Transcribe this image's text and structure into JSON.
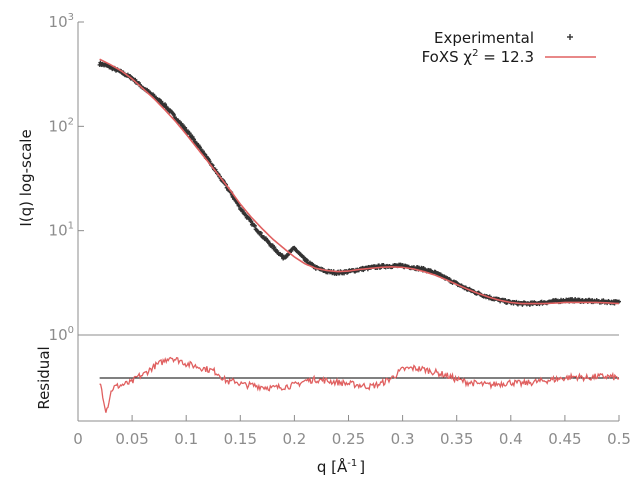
{
  "chart_data": {
    "type": "line",
    "top_panel": {
      "ylabel": "I(q) log-scale",
      "yscale": "log",
      "ylim": [
        1,
        1000
      ],
      "yticks": [
        {
          "base": "10",
          "exp": "0"
        },
        {
          "base": "10",
          "exp": "1"
        },
        {
          "base": "10",
          "exp": "2"
        },
        {
          "base": "10",
          "exp": "3"
        }
      ],
      "legend": {
        "placement": "top-right",
        "entries": [
          {
            "label": "Experimental",
            "marker": "points",
            "color": "#333333"
          },
          {
            "label": "FoXS χ",
            "sup": "2",
            "label_suffix": " = 12.3",
            "marker": "line",
            "color": "#e06060"
          }
        ]
      },
      "series": [
        {
          "name": "Experimental",
          "color": "#333333",
          "x": [
            0.02,
            0.03,
            0.04,
            0.05,
            0.06,
            0.07,
            0.08,
            0.09,
            0.1,
            0.11,
            0.12,
            0.13,
            0.14,
            0.15,
            0.16,
            0.17,
            0.18,
            0.19,
            0.2,
            0.21,
            0.22,
            0.23,
            0.24,
            0.25,
            0.26,
            0.27,
            0.28,
            0.29,
            0.3,
            0.31,
            0.32,
            0.33,
            0.34,
            0.35,
            0.36,
            0.37,
            0.38,
            0.39,
            0.4,
            0.41,
            0.42,
            0.43,
            0.44,
            0.45,
            0.46,
            0.47,
            0.48,
            0.49,
            0.5
          ],
          "y": [
            400,
            370,
            330,
            290,
            235,
            195,
            160,
            122,
            92,
            68,
            48,
            34,
            24,
            16.5,
            12,
            9,
            7,
            5.5,
            6.8,
            5.2,
            4.4,
            4.05,
            3.95,
            4.05,
            4.25,
            4.4,
            4.55,
            4.6,
            4.6,
            4.45,
            4.25,
            3.95,
            3.5,
            3.1,
            2.75,
            2.5,
            2.3,
            2.15,
            2.05,
            2.0,
            2.0,
            2.05,
            2.1,
            2.15,
            2.15,
            2.12,
            2.1,
            2.08,
            2.05
          ]
        },
        {
          "name": "FoXS",
          "color": "#e06060",
          "x": [
            0.02,
            0.03,
            0.04,
            0.05,
            0.06,
            0.07,
            0.08,
            0.09,
            0.1,
            0.11,
            0.12,
            0.13,
            0.14,
            0.15,
            0.16,
            0.17,
            0.18,
            0.19,
            0.2,
            0.21,
            0.22,
            0.23,
            0.24,
            0.25,
            0.26,
            0.27,
            0.28,
            0.29,
            0.3,
            0.31,
            0.32,
            0.33,
            0.34,
            0.35,
            0.36,
            0.37,
            0.38,
            0.39,
            0.4,
            0.41,
            0.42,
            0.43,
            0.44,
            0.45,
            0.46,
            0.47,
            0.48,
            0.49,
            0.5
          ],
          "y": [
            440,
            390,
            340,
            285,
            230,
            185,
            145,
            112,
            84,
            62,
            46,
            34,
            25,
            18,
            13.5,
            10.5,
            8.3,
            6.8,
            5.6,
            4.8,
            4.35,
            4.15,
            4.05,
            4.1,
            4.25,
            4.35,
            4.45,
            4.5,
            4.45,
            4.3,
            4.05,
            3.75,
            3.4,
            3.05,
            2.75,
            2.5,
            2.3,
            2.15,
            2.05,
            2.0,
            2.0,
            2.0,
            2.02,
            2.05,
            2.05,
            2.05,
            2.05,
            2.03,
            2.0
          ]
        }
      ]
    },
    "bottom_panel": {
      "ylabel": "Residual",
      "ylim": [
        -3,
        3
      ],
      "reference_value": 0,
      "series": [
        {
          "name": "Residual",
          "color": "#e06060",
          "x": [
            0.02,
            0.022,
            0.024,
            0.026,
            0.028,
            0.03,
            0.032,
            0.035,
            0.04,
            0.045,
            0.05,
            0.055,
            0.06,
            0.065,
            0.07,
            0.075,
            0.08,
            0.085,
            0.09,
            0.095,
            0.1,
            0.105,
            0.11,
            0.115,
            0.12,
            0.125,
            0.13,
            0.135,
            0.14,
            0.145,
            0.15,
            0.155,
            0.16,
            0.17,
            0.18,
            0.19,
            0.2,
            0.21,
            0.22,
            0.23,
            0.24,
            0.25,
            0.26,
            0.27,
            0.28,
            0.29,
            0.3,
            0.31,
            0.32,
            0.33,
            0.34,
            0.35,
            0.36,
            0.37,
            0.38,
            0.39,
            0.4,
            0.41,
            0.42,
            0.43,
            0.44,
            0.45,
            0.46,
            0.47,
            0.48,
            0.49,
            0.5
          ],
          "y": [
            -0.3,
            -0.8,
            -1.6,
            -2.3,
            -1.8,
            -1.1,
            -0.7,
            -0.6,
            -0.5,
            -0.4,
            -0.3,
            0.1,
            0.2,
            0.5,
            0.8,
            1.0,
            1.2,
            1.5,
            1.3,
            1.2,
            1.0,
            0.9,
            0.8,
            0.7,
            0.6,
            0.5,
            0.3,
            -0.1,
            -0.3,
            -0.2,
            -0.4,
            -0.5,
            -0.5,
            -0.6,
            -0.7,
            -0.6,
            -0.5,
            -0.2,
            -0.1,
            -0.2,
            -0.3,
            -0.4,
            -0.5,
            -0.6,
            -0.4,
            0.0,
            0.6,
            0.7,
            0.6,
            0.4,
            0.2,
            -0.1,
            -0.3,
            -0.4,
            -0.5,
            -0.4,
            -0.3,
            -0.4,
            -0.3,
            -0.2,
            -0.1,
            0.0,
            0.1,
            0.0,
            0.1,
            0.1,
            0.0
          ]
        }
      ]
    },
    "xlabel": "q [Å",
    "xlabel_sup": "-1",
    "xlabel_suffix": "]",
    "xlim": [
      0,
      0.5
    ],
    "xticks": [
      0,
      0.05,
      0.1,
      0.15,
      0.2,
      0.25,
      0.3,
      0.35,
      0.4,
      0.45,
      0.5
    ],
    "xtick_labels": [
      "0",
      "0.05",
      "0.1",
      "0.15",
      "0.2",
      "0.25",
      "0.3",
      "0.35",
      "0.4",
      "0.45",
      "0.5"
    ],
    "grid": false
  }
}
